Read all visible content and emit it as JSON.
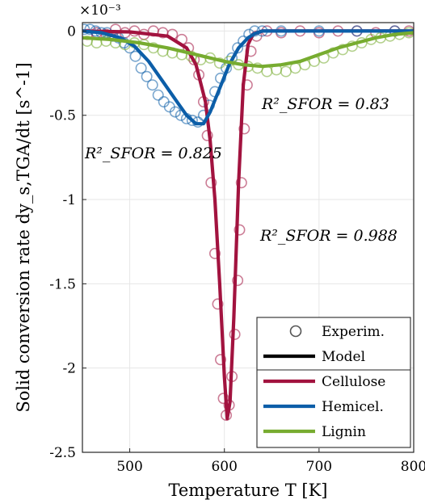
{
  "chart_data": {
    "type": "line",
    "xlabel": "Temperature T [K]",
    "ylabel": "Solid conversion rate dy_s,TGA/dt [s^-1]",
    "y_exponent_label": "×10⁻³",
    "xlim": [
      450,
      800
    ],
    "ylim": [
      -2.5,
      0.05
    ],
    "grid": true,
    "legend_position": "bottom-right",
    "x_ticks": [
      500,
      600,
      700,
      800
    ],
    "x_tick_labels": [
      "500",
      "600",
      "700",
      "800"
    ],
    "y_ticks": [
      0,
      -0.5,
      -1,
      -1.5,
      -2,
      -2.5
    ],
    "y_tick_labels": [
      "0",
      "-0.5",
      "-1",
      "-1.5",
      "-2",
      "-2.5"
    ],
    "legend": [
      {
        "label": "Experim.",
        "kind": "marker",
        "color": "#555555"
      },
      {
        "label": "Model",
        "kind": "line",
        "color": "#000000"
      },
      {
        "label": "Cellulose",
        "kind": "line",
        "color": "#a2133f"
      },
      {
        "label": "Hemicel.",
        "kind": "line",
        "color": "#0c5ea8"
      },
      {
        "label": "Lignin",
        "kind": "line",
        "color": "#77ac30"
      }
    ],
    "series": [
      {
        "name": "Cellulose",
        "color": "#a2133f",
        "r2_annotation": "R²_SFOR = 0.988",
        "model": {
          "x": [
            450,
            500,
            540,
            560,
            570,
            580,
            585,
            590,
            595,
            600,
            603,
            606,
            610,
            615,
            620,
            625,
            630,
            640,
            700,
            800
          ],
          "y": [
            0,
            -0.005,
            -0.03,
            -0.1,
            -0.2,
            -0.42,
            -0.65,
            -1.0,
            -1.5,
            -2.05,
            -2.3,
            -2.2,
            -1.7,
            -0.9,
            -0.32,
            -0.08,
            -0.02,
            0,
            0,
            0
          ]
        },
        "experiment": {
          "x": [
            455,
            465,
            475,
            485,
            495,
            505,
            515,
            525,
            535,
            545,
            555,
            562,
            568,
            573,
            578,
            582,
            586,
            590,
            593,
            596,
            599,
            602,
            605,
            608,
            611,
            614,
            616,
            618,
            621,
            624,
            628,
            634,
            645,
            660,
            680,
            700,
            720,
            740,
            760,
            780,
            795
          ],
          "y": [
            -0.02,
            -0.01,
            -0.02,
            0.01,
            -0.01,
            0.0,
            -0.02,
            0.0,
            -0.01,
            -0.02,
            -0.05,
            -0.1,
            -0.17,
            -0.26,
            -0.42,
            -0.62,
            -0.9,
            -1.32,
            -1.62,
            -1.95,
            -2.18,
            -2.28,
            -2.22,
            -2.05,
            -1.8,
            -1.48,
            -1.18,
            -0.9,
            -0.58,
            -0.32,
            -0.12,
            -0.03,
            0.0,
            -0.01,
            0.0,
            -0.01,
            0.0,
            0.0,
            -0.01,
            0.0,
            0.0
          ]
        }
      },
      {
        "name": "Hemicel.",
        "color": "#0c5ea8",
        "r2_annotation": "R²_SFOR = 0.825",
        "model": {
          "x": [
            450,
            470,
            490,
            505,
            520,
            535,
            550,
            560,
            570,
            578,
            585,
            595,
            605,
            615,
            625,
            632,
            640,
            660,
            700,
            800
          ],
          "y": [
            0,
            -0.01,
            -0.04,
            -0.09,
            -0.18,
            -0.3,
            -0.42,
            -0.5,
            -0.55,
            -0.55,
            -0.48,
            -0.34,
            -0.2,
            -0.1,
            -0.04,
            -0.015,
            0,
            0,
            0,
            0
          ]
        },
        "experiment": {
          "x": [
            452,
            458,
            464,
            470,
            476,
            482,
            488,
            494,
            500,
            506,
            512,
            518,
            524,
            530,
            536,
            542,
            548,
            554,
            560,
            566,
            572,
            578,
            584,
            590,
            596,
            602,
            608,
            614,
            620,
            626,
            632,
            640,
            660,
            700,
            740,
            780
          ],
          "y": [
            0.01,
            0.01,
            0.0,
            -0.01,
            -0.01,
            -0.03,
            -0.04,
            -0.07,
            -0.1,
            -0.15,
            -0.22,
            -0.27,
            -0.32,
            -0.38,
            -0.42,
            -0.45,
            -0.48,
            -0.5,
            -0.52,
            -0.53,
            -0.54,
            -0.5,
            -0.44,
            -0.36,
            -0.28,
            -0.22,
            -0.16,
            -0.1,
            -0.06,
            -0.02,
            0.0,
            0.0,
            0.0,
            0.0,
            0.0,
            0.0
          ]
        }
      },
      {
        "name": "Lignin",
        "color": "#77ac30",
        "r2_annotation": "R²_SFOR = 0.83",
        "model": {
          "x": [
            450,
            480,
            510,
            540,
            570,
            600,
            620,
            640,
            660,
            680,
            700,
            720,
            740,
            760,
            780,
            800
          ],
          "y": [
            -0.04,
            -0.05,
            -0.07,
            -0.1,
            -0.14,
            -0.18,
            -0.2,
            -0.21,
            -0.2,
            -0.18,
            -0.14,
            -0.1,
            -0.07,
            -0.04,
            -0.02,
            -0.01
          ]
        },
        "experiment": {
          "x": [
            455,
            465,
            475,
            485,
            495,
            505,
            515,
            525,
            535,
            545,
            555,
            565,
            575,
            585,
            595,
            605,
            615,
            625,
            635,
            645,
            655,
            665,
            675,
            685,
            695,
            705,
            715,
            725,
            735,
            745,
            755,
            765,
            775,
            785,
            795
          ],
          "y": [
            -0.06,
            -0.07,
            -0.06,
            -0.07,
            -0.08,
            -0.07,
            -0.08,
            -0.1,
            -0.12,
            -0.13,
            -0.14,
            -0.15,
            -0.17,
            -0.16,
            -0.19,
            -0.18,
            -0.2,
            -0.21,
            -0.22,
            -0.24,
            -0.23,
            -0.24,
            -0.22,
            -0.2,
            -0.18,
            -0.16,
            -0.13,
            -0.11,
            -0.09,
            -0.07,
            -0.05,
            -0.04,
            -0.03,
            -0.02,
            -0.01
          ]
        }
      }
    ]
  }
}
